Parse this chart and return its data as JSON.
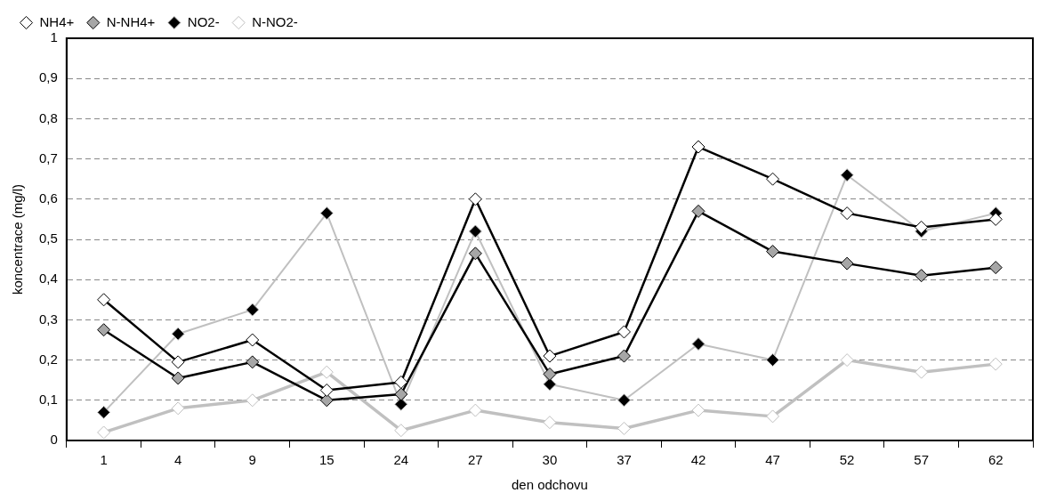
{
  "chart_data": {
    "type": "line",
    "xlabel": "den odchovu",
    "ylabel": "koncentrace (mg/l)",
    "categories": [
      "1",
      "4",
      "9",
      "15",
      "24",
      "27",
      "30",
      "37",
      "42",
      "47",
      "52",
      "57",
      "62"
    ],
    "series": [
      {
        "name": "NH4+",
        "color": "#000000",
        "values": [
          0.35,
          0.195,
          0.25,
          0.125,
          0.145,
          0.6,
          0.21,
          0.27,
          0.73,
          0.65,
          0.565,
          0.53,
          0.55
        ]
      },
      {
        "name": "N-NH4+",
        "color": "#000000",
        "values": [
          0.275,
          0.155,
          0.195,
          0.1,
          0.115,
          0.465,
          0.165,
          0.21,
          0.57,
          0.47,
          0.44,
          0.41,
          0.43
        ]
      },
      {
        "name": "NO2-",
        "color": "#c0c0c0",
        "values": [
          0.07,
          0.265,
          0.325,
          0.565,
          0.09,
          0.52,
          0.14,
          0.1,
          0.24,
          0.2,
          0.66,
          0.52,
          0.565
        ]
      },
      {
        "name": "N-NO2-",
        "color": "#c0c0c0",
        "values": [
          0.02,
          0.08,
          0.1,
          0.17,
          0.025,
          0.075,
          0.045,
          0.03,
          0.075,
          0.06,
          0.2,
          0.17,
          0.19
        ]
      }
    ],
    "ylim": [
      0,
      1
    ],
    "yticks": [
      0,
      {
        "value": 0.1,
        "label": "0,1"
      },
      {
        "value": 0.2,
        "label": "0,2"
      },
      {
        "value": 0.3,
        "label": "0,3"
      },
      {
        "value": 0.4,
        "label": "0,4"
      },
      {
        "value": 0.5,
        "label": "0,5"
      },
      {
        "value": 0.6,
        "label": "0,6"
      },
      {
        "value": 0.7,
        "label": "0,7"
      },
      {
        "value": 0.8,
        "label": "0,8"
      },
      {
        "value": 0.9,
        "label": "0,9"
      },
      1
    ],
    "grid": "y",
    "legend": "top left",
    "marker": "diamond",
    "line_style": "solid"
  }
}
